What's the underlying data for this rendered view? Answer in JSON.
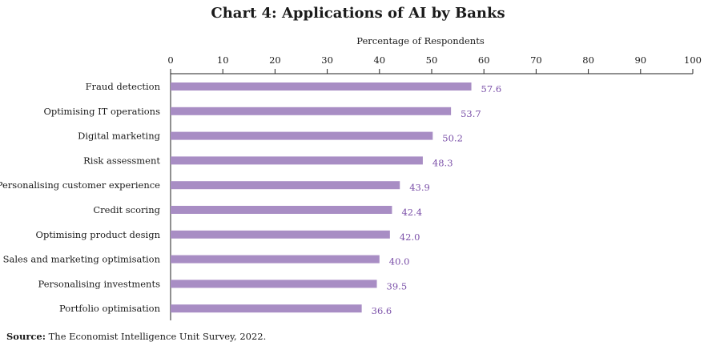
{
  "chart_data": {
    "type": "bar",
    "orientation": "horizontal",
    "title": "Chart 4: Applications of AI by Banks",
    "xlabel": "Percentage of Respondents",
    "ylabel": "",
    "xlim": [
      0,
      100
    ],
    "x_ticks": [
      0,
      10,
      20,
      30,
      40,
      50,
      60,
      70,
      80,
      90,
      100
    ],
    "x_axis_position": "top",
    "grid": false,
    "categories": [
      "Fraud detection",
      "Optimising IT operations",
      "Digital marketing",
      "Risk assessment",
      "Personalising customer experience",
      "Credit scoring",
      "Optimising product design",
      "Sales and marketing optimisation",
      "Personalising investments",
      "Portfolio optimisation"
    ],
    "values": [
      57.6,
      53.7,
      50.2,
      48.3,
      43.9,
      42.4,
      42.0,
      40.0,
      39.5,
      36.6
    ],
    "value_labels": [
      "57.6",
      "53.7",
      "50.2",
      "48.3",
      "43.9",
      "42.4",
      "42.0",
      "40.0",
      "39.5",
      "36.6"
    ],
    "bar_color": "#a88dc4",
    "label_color": "#7a4fa8"
  },
  "source": {
    "label": "Source:",
    "text": "The Economist Intelligence Unit Survey, 2022."
  }
}
